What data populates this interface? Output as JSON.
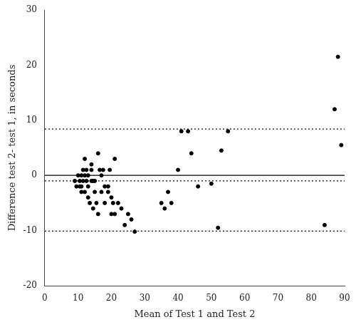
{
  "chart_data": {
    "type": "scatter",
    "xlabel": "Mean of Test 1 and Test 2",
    "ylabel": "Difference test 2- test 1, in seconds",
    "x": [
      9,
      9.5,
      10,
      10.5,
      10.5,
      11,
      11,
      11,
      11.5,
      11.5,
      12,
      12,
      12,
      12.5,
      12.5,
      13,
      13,
      13,
      13.5,
      14,
      14,
      14,
      14.5,
      14.5,
      15,
      15,
      15.5,
      16,
      16,
      16.5,
      17,
      17,
      17.5,
      18,
      18,
      19,
      19,
      19.5,
      20,
      20,
      20.5,
      21,
      21,
      22,
      23,
      24,
      25,
      26,
      27,
      35,
      36,
      37,
      38,
      40,
      41,
      43,
      44,
      46,
      50,
      52,
      53,
      55,
      84,
      87,
      88,
      89
    ],
    "values": [
      -1,
      -2,
      0,
      -2,
      -1,
      0,
      -2,
      -3,
      1,
      -1,
      0,
      -3,
      3,
      -1,
      1,
      0,
      -4,
      -2,
      -5,
      -1,
      1,
      2,
      -1,
      -6,
      -3,
      -1,
      -5,
      -7,
      4,
      1,
      0,
      -3,
      1,
      -2,
      -5,
      -3,
      -2,
      1,
      -7,
      -4,
      -5,
      -7,
      3,
      -5,
      -6,
      -9,
      -7,
      -8,
      -10.2,
      -5,
      -6,
      -3,
      -5,
      1,
      8,
      8,
      4,
      -2,
      -1.5,
      -9.5,
      4.5,
      8,
      -9,
      12,
      21.5,
      5.5
    ],
    "color": "black",
    "marker": "circle",
    "xlim": [
      0,
      90
    ],
    "ylim": [
      -20,
      30
    ],
    "xticks": [
      0,
      10,
      20,
      30,
      40,
      50,
      60,
      70,
      80,
      90
    ],
    "yticks": [
      -20,
      -10,
      0,
      10,
      20,
      30
    ],
    "grid": false,
    "hlines": [
      {
        "value": 0.0,
        "line_style": "solid",
        "color": "black"
      },
      {
        "value": -1.0,
        "line_style": "dotted",
        "color": "black"
      },
      {
        "value": 8.4,
        "line_style": "dotted",
        "color": "black"
      },
      {
        "value": -10.1,
        "line_style": "dotted",
        "color": "black"
      }
    ]
  }
}
